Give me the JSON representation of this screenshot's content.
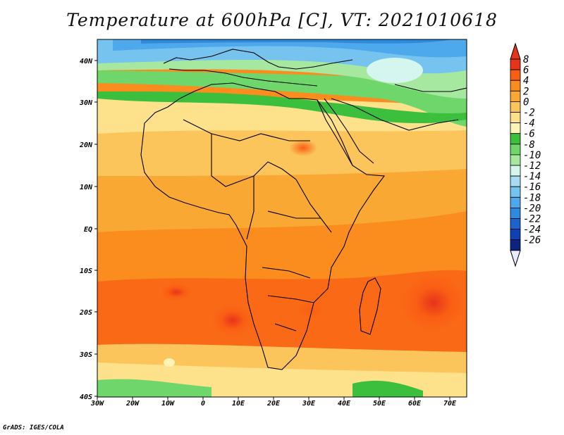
{
  "title": "Temperature at 600hPa [C], VT: 2021010618",
  "credit": "GrADS: IGES/COLA",
  "lat_labels": [
    "40N",
    "30N",
    "20N",
    "10N",
    "EQ",
    "10S",
    "20S",
    "30S",
    "40S"
  ],
  "lon_labels": [
    "30W",
    "20W",
    "10W",
    "0",
    "10E",
    "20E",
    "30E",
    "40E",
    "50E",
    "60E",
    "70E"
  ],
  "colorbar": {
    "levels": [
      "8",
      "6",
      "4",
      "2",
      "0",
      "-2",
      "-4",
      "-6",
      "-8",
      "-10",
      "-12",
      "-14",
      "-16",
      "-18",
      "-20",
      "-22",
      "-24",
      "-26"
    ],
    "colors": [
      "#ffffff",
      "#e8331b",
      "#fa5e14",
      "#fb8c1e",
      "#f9a833",
      "#fbc55b",
      "#fde18b",
      "#fdf4b6",
      "#3bbf3d",
      "#6fd66b",
      "#a6e8a0",
      "#d4f6ee",
      "#a7dbf2",
      "#76c3ef",
      "#4ea8ec",
      "#2e8ae0",
      "#1c63cf",
      "#1040b6",
      "#0c2382",
      "#e8eaff"
    ]
  }
}
